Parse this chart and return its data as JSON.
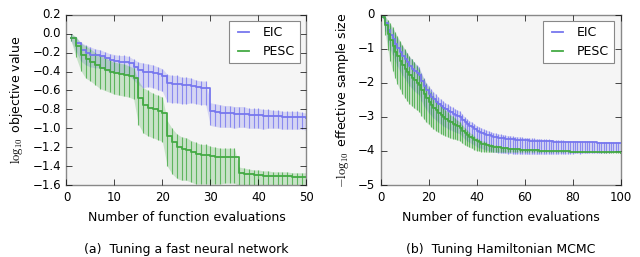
{
  "fig_width": 6.4,
  "fig_height": 2.57,
  "dpi": 100,
  "background_color": "#ffffff",
  "subplot_a": {
    "title": "(a)  Tuning a fast neural network",
    "xlabel": "Number of function evaluations",
    "ylabel": "$\\log_{10}$ objective value",
    "xlim": [
      0,
      50
    ],
    "ylim": [
      -1.6,
      0.2
    ],
    "yticks": [
      0.2,
      0.0,
      -0.2,
      -0.4,
      -0.6,
      -0.8,
      -1.0,
      -1.2,
      -1.4,
      -1.6
    ],
    "xticks": [
      0,
      10,
      20,
      30,
      40,
      50
    ],
    "eic_color": "#7777ee",
    "pesc_color": "#44aa44",
    "eic_x": [
      1,
      2,
      3,
      4,
      5,
      6,
      7,
      8,
      9,
      10,
      11,
      12,
      13,
      14,
      15,
      16,
      17,
      18,
      19,
      20,
      21,
      22,
      23,
      24,
      25,
      26,
      27,
      28,
      29,
      30,
      31,
      32,
      33,
      34,
      35,
      36,
      37,
      38,
      39,
      40,
      41,
      42,
      43,
      44,
      45,
      46,
      47,
      48,
      49,
      50
    ],
    "eic_y": [
      -0.04,
      -0.1,
      -0.17,
      -0.2,
      -0.22,
      -0.23,
      -0.24,
      -0.26,
      -0.28,
      -0.29,
      -0.3,
      -0.3,
      -0.31,
      -0.35,
      -0.38,
      -0.4,
      -0.4,
      -0.41,
      -0.43,
      -0.45,
      -0.52,
      -0.53,
      -0.53,
      -0.54,
      -0.54,
      -0.55,
      -0.56,
      -0.57,
      -0.57,
      -0.82,
      -0.83,
      -0.84,
      -0.84,
      -0.84,
      -0.85,
      -0.85,
      -0.85,
      -0.86,
      -0.86,
      -0.86,
      -0.87,
      -0.87,
      -0.87,
      -0.87,
      -0.88,
      -0.88,
      -0.88,
      -0.88,
      -0.88,
      -0.89
    ],
    "eic_yerr_lo": [
      0.04,
      0.09,
      0.12,
      0.13,
      0.13,
      0.13,
      0.12,
      0.12,
      0.13,
      0.12,
      0.12,
      0.12,
      0.13,
      0.14,
      0.16,
      0.17,
      0.16,
      0.16,
      0.16,
      0.16,
      0.2,
      0.2,
      0.2,
      0.2,
      0.2,
      0.18,
      0.18,
      0.18,
      0.18,
      0.15,
      0.15,
      0.15,
      0.15,
      0.15,
      0.15,
      0.14,
      0.14,
      0.14,
      0.14,
      0.14,
      0.14,
      0.13,
      0.13,
      0.13,
      0.13,
      0.13,
      0.13,
      0.13,
      0.13,
      0.13
    ],
    "eic_yerr_hi": [
      0.04,
      0.06,
      0.08,
      0.08,
      0.08,
      0.07,
      0.07,
      0.07,
      0.07,
      0.07,
      0.07,
      0.07,
      0.07,
      0.08,
      0.08,
      0.09,
      0.08,
      0.08,
      0.08,
      0.08,
      0.09,
      0.09,
      0.09,
      0.08,
      0.08,
      0.08,
      0.07,
      0.07,
      0.07,
      0.09,
      0.09,
      0.09,
      0.08,
      0.08,
      0.08,
      0.08,
      0.08,
      0.07,
      0.07,
      0.07,
      0.07,
      0.07,
      0.06,
      0.06,
      0.06,
      0.06,
      0.06,
      0.06,
      0.05,
      0.05
    ],
    "pesc_x": [
      1,
      2,
      3,
      4,
      5,
      6,
      7,
      8,
      9,
      10,
      11,
      12,
      13,
      14,
      15,
      16,
      17,
      18,
      19,
      20,
      21,
      22,
      23,
      24,
      25,
      26,
      27,
      28,
      29,
      30,
      31,
      32,
      33,
      34,
      35,
      36,
      37,
      38,
      39,
      40,
      41,
      42,
      43,
      44,
      45,
      46,
      47,
      48,
      49,
      50
    ],
    "pesc_y": [
      -0.04,
      -0.13,
      -0.22,
      -0.27,
      -0.3,
      -0.33,
      -0.36,
      -0.38,
      -0.4,
      -0.42,
      -0.43,
      -0.44,
      -0.45,
      -0.47,
      -0.68,
      -0.75,
      -0.78,
      -0.8,
      -0.82,
      -0.84,
      -1.08,
      -1.15,
      -1.2,
      -1.22,
      -1.23,
      -1.25,
      -1.27,
      -1.28,
      -1.28,
      -1.29,
      -1.3,
      -1.3,
      -1.3,
      -1.3,
      -1.3,
      -1.47,
      -1.48,
      -1.48,
      -1.49,
      -1.49,
      -1.5,
      -1.5,
      -1.5,
      -1.5,
      -1.5,
      -1.5,
      -1.51,
      -1.51,
      -1.51,
      -1.51
    ],
    "pesc_yerr_lo": [
      0.04,
      0.12,
      0.17,
      0.2,
      0.2,
      0.21,
      0.22,
      0.22,
      0.22,
      0.22,
      0.22,
      0.22,
      0.22,
      0.22,
      0.28,
      0.3,
      0.3,
      0.3,
      0.3,
      0.3,
      0.32,
      0.33,
      0.33,
      0.33,
      0.32,
      0.32,
      0.32,
      0.31,
      0.31,
      0.3,
      0.29,
      0.29,
      0.28,
      0.28,
      0.28,
      0.14,
      0.14,
      0.14,
      0.13,
      0.13,
      0.12,
      0.12,
      0.12,
      0.11,
      0.11,
      0.11,
      0.11,
      0.1,
      0.1,
      0.1
    ],
    "pesc_yerr_hi": [
      0.04,
      0.1,
      0.12,
      0.14,
      0.14,
      0.13,
      0.13,
      0.13,
      0.12,
      0.12,
      0.12,
      0.12,
      0.11,
      0.11,
      0.18,
      0.18,
      0.18,
      0.17,
      0.17,
      0.17,
      0.16,
      0.15,
      0.14,
      0.13,
      0.13,
      0.12,
      0.12,
      0.11,
      0.11,
      0.1,
      0.1,
      0.09,
      0.09,
      0.09,
      0.09,
      0.06,
      0.06,
      0.05,
      0.05,
      0.05,
      0.05,
      0.05,
      0.04,
      0.04,
      0.04,
      0.04,
      0.04,
      0.04,
      0.04,
      0.04
    ]
  },
  "subplot_b": {
    "title": "(b)  Tuning Hamiltonian MCMC",
    "xlabel": "Number of function evaluations",
    "ylabel": "$-\\log_{10}$ effective sample size",
    "xlim": [
      0,
      100
    ],
    "ylim": [
      -5,
      0
    ],
    "yticks": [
      0,
      -1,
      -2,
      -3,
      -4,
      -5
    ],
    "xticks": [
      0,
      20,
      40,
      60,
      80,
      100
    ],
    "eic_color": "#7777ee",
    "pesc_color": "#44aa44",
    "eic_x": [
      1,
      2,
      3,
      4,
      5,
      6,
      7,
      8,
      9,
      10,
      11,
      12,
      13,
      14,
      15,
      16,
      17,
      18,
      19,
      20,
      21,
      22,
      23,
      24,
      25,
      26,
      27,
      28,
      29,
      30,
      31,
      32,
      33,
      34,
      35,
      36,
      37,
      38,
      39,
      40,
      41,
      42,
      43,
      44,
      45,
      46,
      47,
      48,
      49,
      50,
      51,
      52,
      53,
      54,
      55,
      56,
      57,
      58,
      59,
      60,
      61,
      62,
      63,
      64,
      65,
      66,
      67,
      68,
      69,
      70,
      71,
      72,
      73,
      74,
      75,
      76,
      77,
      78,
      79,
      80,
      81,
      82,
      83,
      84,
      85,
      86,
      87,
      88,
      89,
      90,
      91,
      92,
      93,
      94,
      95,
      96,
      97,
      98,
      99,
      100
    ],
    "eic_y": [
      -0.05,
      -0.25,
      -0.45,
      -0.6,
      -0.72,
      -0.85,
      -0.98,
      -1.1,
      -1.2,
      -1.3,
      -1.4,
      -1.5,
      -1.58,
      -1.65,
      -1.72,
      -1.78,
      -1.95,
      -2.1,
      -2.22,
      -2.32,
      -2.4,
      -2.48,
      -2.55,
      -2.62,
      -2.68,
      -2.73,
      -2.78,
      -2.82,
      -2.86,
      -2.9,
      -2.94,
      -2.97,
      -3.0,
      -3.08,
      -3.16,
      -3.22,
      -3.27,
      -3.3,
      -3.35,
      -3.4,
      -3.43,
      -3.46,
      -3.49,
      -3.52,
      -3.54,
      -3.56,
      -3.58,
      -3.6,
      -3.61,
      -3.62,
      -3.63,
      -3.64,
      -3.65,
      -3.65,
      -3.66,
      -3.67,
      -3.67,
      -3.68,
      -3.68,
      -3.69,
      -3.69,
      -3.7,
      -3.7,
      -3.7,
      -3.71,
      -3.71,
      -3.71,
      -3.72,
      -3.72,
      -3.72,
      -3.72,
      -3.73,
      -3.73,
      -3.73,
      -3.73,
      -3.73,
      -3.74,
      -3.74,
      -3.74,
      -3.74,
      -3.74,
      -3.74,
      -3.75,
      -3.75,
      -3.75,
      -3.75,
      -3.75,
      -3.75,
      -3.75,
      -3.76,
      -3.76,
      -3.76,
      -3.76,
      -3.76,
      -3.76,
      -3.76,
      -3.76,
      -3.76,
      -3.76,
      -3.77
    ],
    "eic_yerr_lo": [
      0.05,
      0.22,
      0.35,
      0.42,
      0.46,
      0.5,
      0.53,
      0.55,
      0.56,
      0.57,
      0.58,
      0.58,
      0.58,
      0.58,
      0.58,
      0.57,
      0.57,
      0.57,
      0.56,
      0.56,
      0.55,
      0.55,
      0.54,
      0.54,
      0.53,
      0.53,
      0.52,
      0.52,
      0.51,
      0.51,
      0.5,
      0.5,
      0.49,
      0.49,
      0.49,
      0.48,
      0.48,
      0.48,
      0.47,
      0.47,
      0.47,
      0.46,
      0.46,
      0.46,
      0.45,
      0.45,
      0.45,
      0.44,
      0.44,
      0.44,
      0.43,
      0.43,
      0.43,
      0.42,
      0.42,
      0.42,
      0.41,
      0.41,
      0.41,
      0.4,
      0.4,
      0.4,
      0.39,
      0.39,
      0.39,
      0.38,
      0.38,
      0.38,
      0.37,
      0.37,
      0.37,
      0.36,
      0.36,
      0.36,
      0.35,
      0.35,
      0.35,
      0.34,
      0.34,
      0.34,
      0.33,
      0.33,
      0.33,
      0.32,
      0.32,
      0.32,
      0.31,
      0.31,
      0.31,
      0.3,
      0.3,
      0.3,
      0.29,
      0.29,
      0.29,
      0.28,
      0.28,
      0.28,
      0.27,
      0.27
    ],
    "eic_yerr_hi": [
      0.05,
      0.18,
      0.26,
      0.29,
      0.3,
      0.3,
      0.3,
      0.29,
      0.29,
      0.28,
      0.28,
      0.27,
      0.27,
      0.26,
      0.26,
      0.25,
      0.25,
      0.24,
      0.23,
      0.23,
      0.22,
      0.22,
      0.21,
      0.21,
      0.2,
      0.2,
      0.19,
      0.19,
      0.18,
      0.18,
      0.18,
      0.17,
      0.17,
      0.16,
      0.16,
      0.16,
      0.15,
      0.15,
      0.15,
      0.14,
      0.14,
      0.14,
      0.13,
      0.13,
      0.13,
      0.12,
      0.12,
      0.12,
      0.11,
      0.11,
      0.11,
      0.1,
      0.1,
      0.1,
      0.09,
      0.09,
      0.09,
      0.09,
      0.08,
      0.08,
      0.08,
      0.08,
      0.07,
      0.07,
      0.07,
      0.07,
      0.06,
      0.06,
      0.06,
      0.06,
      0.05,
      0.05,
      0.05,
      0.05,
      0.05,
      0.04,
      0.04,
      0.04,
      0.04,
      0.04,
      0.04,
      0.03,
      0.03,
      0.03,
      0.03,
      0.03,
      0.03,
      0.03,
      0.02,
      0.02,
      0.02,
      0.02,
      0.02,
      0.02,
      0.02,
      0.02,
      0.01,
      0.01,
      0.01,
      0.01
    ],
    "pesc_x": [
      1,
      2,
      3,
      4,
      5,
      6,
      7,
      8,
      9,
      10,
      11,
      12,
      13,
      14,
      15,
      16,
      17,
      18,
      19,
      20,
      21,
      22,
      23,
      24,
      25,
      26,
      27,
      28,
      29,
      30,
      31,
      32,
      33,
      34,
      35,
      36,
      37,
      38,
      39,
      40,
      41,
      42,
      43,
      44,
      45,
      46,
      47,
      48,
      49,
      50,
      51,
      52,
      53,
      54,
      55,
      56,
      57,
      58,
      59,
      60,
      61,
      62,
      63,
      64,
      65,
      66,
      67,
      68,
      69,
      70,
      71,
      72,
      73,
      74,
      75,
      76,
      77,
      78,
      79,
      80,
      81,
      82,
      83,
      84,
      85,
      86,
      87,
      88,
      89,
      90,
      91,
      92,
      93,
      94,
      95,
      96,
      97,
      98,
      99,
      100
    ],
    "pesc_y": [
      -0.05,
      -0.3,
      -0.55,
      -0.75,
      -0.92,
      -1.08,
      -1.22,
      -1.35,
      -1.47,
      -1.58,
      -1.68,
      -1.77,
      -1.85,
      -1.92,
      -1.99,
      -2.06,
      -2.2,
      -2.33,
      -2.45,
      -2.55,
      -2.65,
      -2.73,
      -2.81,
      -2.88,
      -2.94,
      -3.0,
      -3.06,
      -3.11,
      -3.16,
      -3.2,
      -3.24,
      -3.28,
      -3.32,
      -3.4,
      -3.47,
      -3.53,
      -3.58,
      -3.62,
      -3.68,
      -3.72,
      -3.75,
      -3.78,
      -3.8,
      -3.82,
      -3.84,
      -3.86,
      -3.87,
      -3.88,
      -3.89,
      -3.9,
      -3.91,
      -3.92,
      -3.93,
      -3.93,
      -3.94,
      -3.95,
      -3.95,
      -3.96,
      -3.96,
      -3.97,
      -3.97,
      -3.97,
      -3.98,
      -3.98,
      -3.98,
      -3.99,
      -3.99,
      -3.99,
      -3.99,
      -4.0,
      -4.0,
      -4.0,
      -4.0,
      -4.01,
      -4.01,
      -4.01,
      -4.01,
      -4.01,
      -4.02,
      -4.02,
      -4.02,
      -4.02,
      -4.02,
      -4.02,
      -4.03,
      -4.03,
      -4.03,
      -4.03,
      -4.03,
      -4.03,
      -4.03,
      -4.04,
      -4.04,
      -4.04,
      -4.04,
      -4.04,
      -4.04,
      -4.04,
      -4.04,
      -4.05
    ],
    "pesc_yerr_lo": [
      0.05,
      0.28,
      0.48,
      0.62,
      0.72,
      0.78,
      0.82,
      0.84,
      0.85,
      0.85,
      0.85,
      0.84,
      0.83,
      0.82,
      0.8,
      0.78,
      0.76,
      0.73,
      0.7,
      0.67,
      0.64,
      0.62,
      0.59,
      0.57,
      0.55,
      0.52,
      0.5,
      0.48,
      0.46,
      0.44,
      0.42,
      0.4,
      0.38,
      0.37,
      0.35,
      0.33,
      0.31,
      0.3,
      0.28,
      0.27,
      0.25,
      0.24,
      0.22,
      0.21,
      0.2,
      0.18,
      0.17,
      0.16,
      0.15,
      0.14,
      0.13,
      0.12,
      0.11,
      0.1,
      0.09,
      0.09,
      0.08,
      0.07,
      0.07,
      0.06,
      0.06,
      0.05,
      0.05,
      0.05,
      0.04,
      0.04,
      0.04,
      0.03,
      0.03,
      0.03,
      0.03,
      0.02,
      0.02,
      0.02,
      0.02,
      0.02,
      0.01,
      0.01,
      0.01,
      0.01,
      0.01,
      0.01,
      0.01,
      0.01,
      0.01,
      0.01,
      0.01,
      0.01,
      0.01,
      0.01,
      0.01,
      0.01,
      0.01,
      0.01,
      0.01,
      0.01,
      0.01,
      0.01,
      0.01,
      0.01
    ],
    "pesc_yerr_hi": [
      0.05,
      0.25,
      0.4,
      0.5,
      0.55,
      0.58,
      0.59,
      0.59,
      0.59,
      0.58,
      0.57,
      0.55,
      0.54,
      0.52,
      0.5,
      0.48,
      0.46,
      0.44,
      0.42,
      0.4,
      0.38,
      0.36,
      0.34,
      0.32,
      0.3,
      0.28,
      0.26,
      0.25,
      0.23,
      0.22,
      0.2,
      0.19,
      0.18,
      0.17,
      0.16,
      0.15,
      0.13,
      0.12,
      0.11,
      0.1,
      0.09,
      0.08,
      0.08,
      0.07,
      0.06,
      0.06,
      0.05,
      0.05,
      0.04,
      0.04,
      0.04,
      0.03,
      0.03,
      0.03,
      0.02,
      0.02,
      0.02,
      0.02,
      0.02,
      0.01,
      0.01,
      0.01,
      0.01,
      0.01,
      0.01,
      0.01,
      0.01,
      0.01,
      0.01,
      0.01,
      0.01,
      0.01,
      0.01,
      0.01,
      0.01,
      0.01,
      0.01,
      0.01,
      0.01,
      0.01,
      0.01,
      0.01,
      0.01,
      0.01,
      0.01,
      0.01,
      0.01,
      0.01,
      0.01,
      0.01,
      0.01,
      0.01,
      0.01,
      0.01,
      0.01,
      0.01,
      0.01,
      0.01,
      0.01,
      0.01
    ]
  }
}
